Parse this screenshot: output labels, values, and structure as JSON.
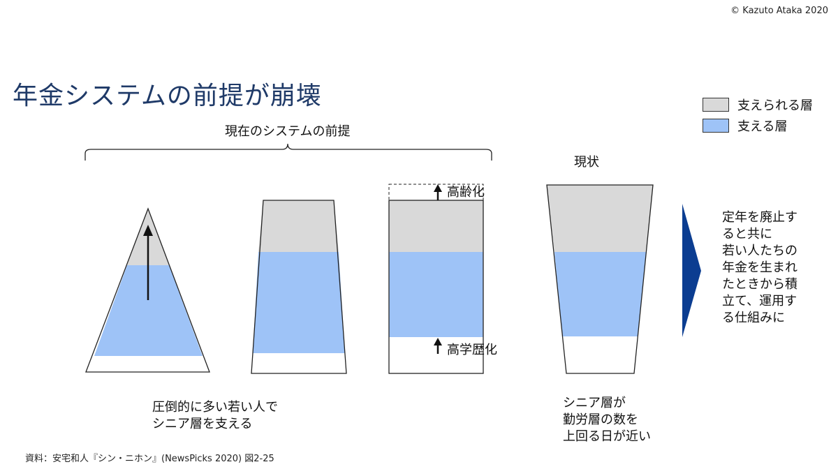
{
  "copyright": "© Kazuto Ataka 2020",
  "title": "年金システムの前提が崩壊",
  "premise_label": "現在のシステムの前提",
  "current_label": "現状",
  "legend": {
    "supported": {
      "label": "支えられる層",
      "color": "#d9d9d9"
    },
    "supporting": {
      "label": "支える層",
      "color": "#9ec3f7"
    }
  },
  "aging_label": "高齢化",
  "education_label": "高学歴化",
  "caption_left": "圧倒的に多い若い人で\nシニア層を支える",
  "caption_right": "シニア層が\n勤労層の数を\n上回る日が近い",
  "proposal": "定年を廃止す\nると共に\n若い人たちの\n年金を生まれ\nたときから積\n立て、運用す\nる仕組みに",
  "source": "資料：安宅和人『シン・ニホン』(NewsPicks 2020) 図2-25",
  "colors": {
    "arrow_triangle": "#0b3d91",
    "outline": "#222222",
    "title": "#1f3a68"
  }
}
